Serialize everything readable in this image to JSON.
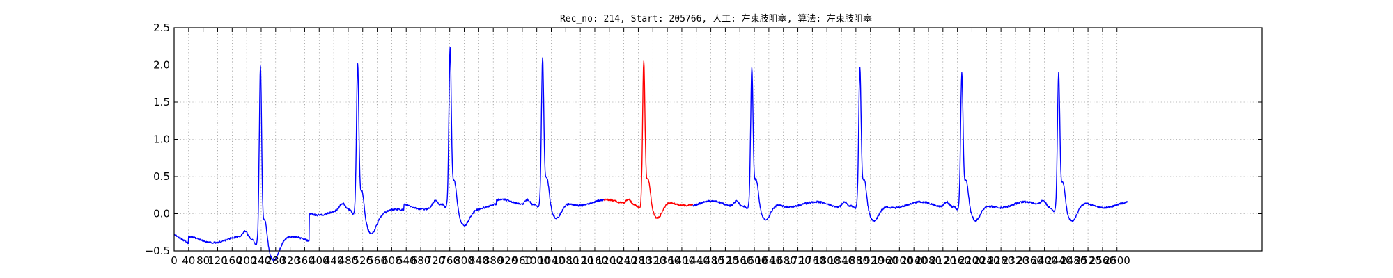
{
  "chart_data": {
    "type": "line",
    "title": "Rec_no: 214, Start: 205766, 人工: 左束肢阻塞, 算法: 左束肢阻塞",
    "xlabel": "",
    "ylabel": "",
    "xlim": [
      0,
      3000
    ],
    "ylim": [
      -0.5,
      2.5
    ],
    "grid": true,
    "y_ticks": [
      -0.5,
      0.0,
      0.5,
      1.0,
      1.5,
      2.0,
      2.5
    ],
    "y_tick_labels": [
      "−0.5",
      "0.0",
      "0.5",
      "1.0",
      "1.5",
      "2.0",
      "2.5"
    ],
    "x_ticks": [
      0,
      40,
      80,
      120,
      160,
      200,
      240,
      280,
      320,
      360,
      400,
      440,
      480,
      520,
      560,
      600,
      640,
      680,
      720,
      760,
      800,
      840,
      880,
      920,
      960,
      1000,
      1040,
      1080,
      1120,
      1160,
      1200,
      1240,
      1280,
      1320,
      1360,
      1400,
      1440,
      1480,
      1520,
      1560,
      1600,
      1640,
      1680,
      1720,
      1760,
      1800,
      1840,
      1880,
      1920,
      1960,
      2000,
      2040,
      2080,
      2120,
      2160,
      2200,
      2240,
      2280,
      2320,
      2360,
      2400,
      2440,
      2480,
      2520,
      2560,
      2600
    ],
    "x_tick_labels": [
      "0",
      "40",
      "80",
      "120",
      "160",
      "200",
      "240",
      "280",
      "320",
      "360",
      "400",
      "440",
      "480",
      "520",
      "560",
      "600",
      "640",
      "680",
      "720",
      "760",
      "800",
      "840",
      "880",
      "920",
      "960",
      "1000",
      "1040",
      "1080",
      "1120",
      "1160",
      "1200",
      "1240",
      "1280",
      "1320",
      "1360",
      "1400",
      "1440",
      "1480",
      "1520",
      "1560",
      "1600",
      "1640",
      "1680",
      "1720",
      "1760",
      "1800",
      "1840",
      "1880",
      "1920",
      "1960",
      "2000",
      "2040",
      "2080",
      "2120",
      "2160",
      "2200",
      "2240",
      "2280",
      "2320",
      "2360",
      "2400",
      "2440",
      "2480",
      "2520",
      "2560",
      "2600"
    ],
    "series": [
      {
        "color": "#0000ff",
        "segment": "before",
        "x_range": [
          0,
          1185
        ],
        "r_peaks": [
          238,
          506,
          761,
          1016
        ],
        "peak_values": [
          1.98,
          1.98,
          2.15,
          2.05
        ],
        "baseline": [
          -0.35,
          0.02,
          0.1,
          0.15
        ]
      },
      {
        "color": "#ff0000",
        "segment": "highlighted beat",
        "x_range": [
          1185,
          1430
        ],
        "r_peaks": [
          1295
        ],
        "peak_values": [
          2.02
        ],
        "baseline": [
          0.15
        ]
      },
      {
        "color": "#0000ff",
        "segment": "after",
        "x_range": [
          1430,
          2630
        ],
        "r_peaks": [
          1593,
          1891,
          2172,
          2439
        ],
        "peak_values": [
          1.92,
          1.91,
          1.85,
          1.88
        ],
        "baseline": [
          0.13,
          0.12,
          0.12,
          0.12
        ]
      }
    ]
  }
}
